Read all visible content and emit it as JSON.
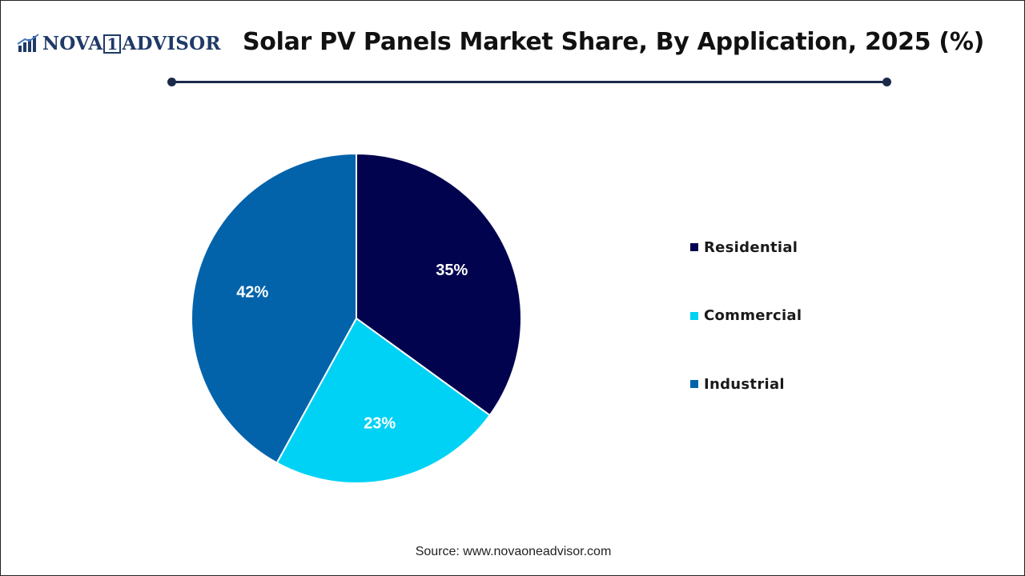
{
  "logo": {
    "text": "NOVA",
    "text_box": "1",
    "text_end": "ADVISOR",
    "icon": "bar-chart-logo-icon"
  },
  "chart_data": {
    "type": "pie",
    "title": "Solar PV Panels Market Share, By Application, 2025 (%)",
    "slices": [
      {
        "name": "Residential",
        "value": 35,
        "label": "35%",
        "color": "#02034f"
      },
      {
        "name": "Commercial",
        "value": 23,
        "label": "23%",
        "color": "#00d2f5"
      },
      {
        "name": "Industrial",
        "value": 42,
        "label": "42%",
        "color": "#0263ab"
      }
    ],
    "start_angle": "12 o'clock",
    "direction": "clockwise",
    "legend_position": "right"
  },
  "source": "Source: www.novaoneadvisor.com"
}
